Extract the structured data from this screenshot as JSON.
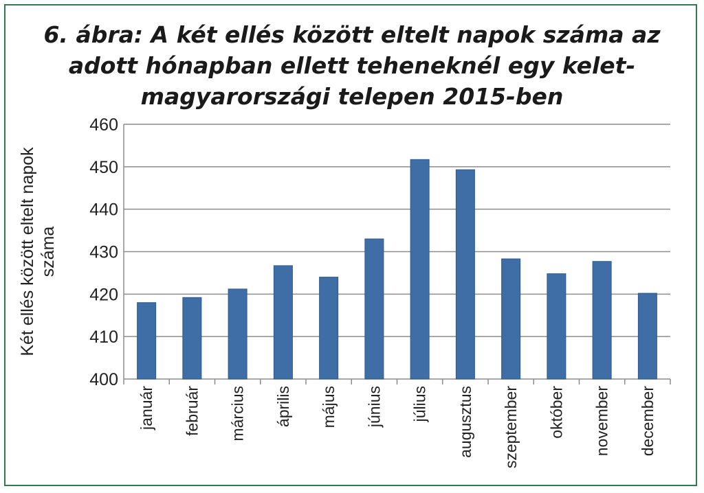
{
  "chart_data": {
    "type": "bar",
    "title": "6. ábra: A két ellés között eltelt napok száma az adott hónapban ellett teheneknél egy kelet-magyarországi telepen 2015-ben",
    "xlabel": "",
    "ylabel_lines": [
      "Két ellés között eltelt napok",
      "száma"
    ],
    "categories": [
      "január",
      "február",
      "március",
      "április",
      "május",
      "június",
      "július",
      "augusztus",
      "szeptember",
      "október",
      "november",
      "december"
    ],
    "values": [
      418,
      419.2,
      421.2,
      426.7,
      424,
      433,
      451.7,
      449.3,
      428.3,
      424.8,
      427.7,
      420.2
    ],
    "ylim": [
      400,
      460
    ],
    "yticks": [
      400,
      410,
      420,
      430,
      440,
      450,
      460
    ],
    "grid": true,
    "bar_color": "#3f6ea6",
    "bar_edge_color": "#2d5a8e",
    "grid_color": "#8c8c8c",
    "frame_color": "#2f7a4f"
  }
}
